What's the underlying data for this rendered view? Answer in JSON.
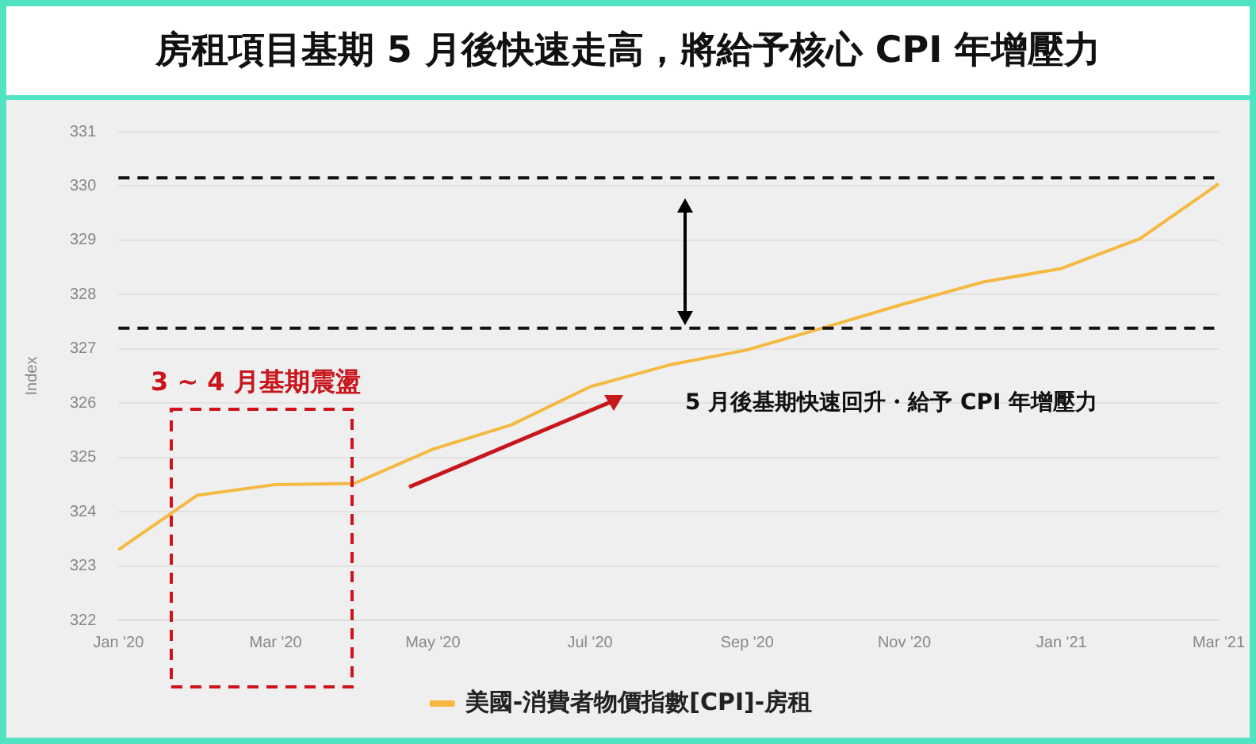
{
  "chart_data": {
    "type": "line",
    "title": "房租項目基期 5 月後快速走高，將給予核心 CPI 年增壓力",
    "ylabel": "Index",
    "categories": [
      "Jan '20",
      null,
      "Mar '20",
      null,
      "May '20",
      null,
      "Jul '20",
      null,
      "Sep '20",
      null,
      "Nov '20",
      null,
      "Jan '21",
      null,
      "Mar '21"
    ],
    "series": [
      {
        "name": "美國-消費者物價指數[CPI]-房租",
        "color": "#f5b942",
        "values": [
          323.3,
          324.3,
          324.5,
          324.52,
          325.15,
          325.6,
          326.3,
          326.7,
          326.98,
          327.4,
          327.83,
          328.23,
          328.48,
          329.03,
          330.04
        ]
      }
    ],
    "ylim": [
      322,
      331
    ],
    "yticks": [
      322,
      323,
      324,
      325,
      326,
      327,
      328,
      329,
      330,
      331
    ],
    "grid": "y",
    "legend": "bottom",
    "marker": "none",
    "line_style": "solid",
    "ref_lines": [
      {
        "axis": "y",
        "value": 330.15,
        "color": "#111111",
        "line_style": "dashed"
      },
      {
        "axis": "y",
        "value": 327.38,
        "color": "#111111",
        "line_style": "dashed"
      }
    ],
    "annotations": [
      "3 ~ 4 月基期震盪",
      "5 月後基期快速回升・給予 CPI 年增壓力"
    ]
  }
}
